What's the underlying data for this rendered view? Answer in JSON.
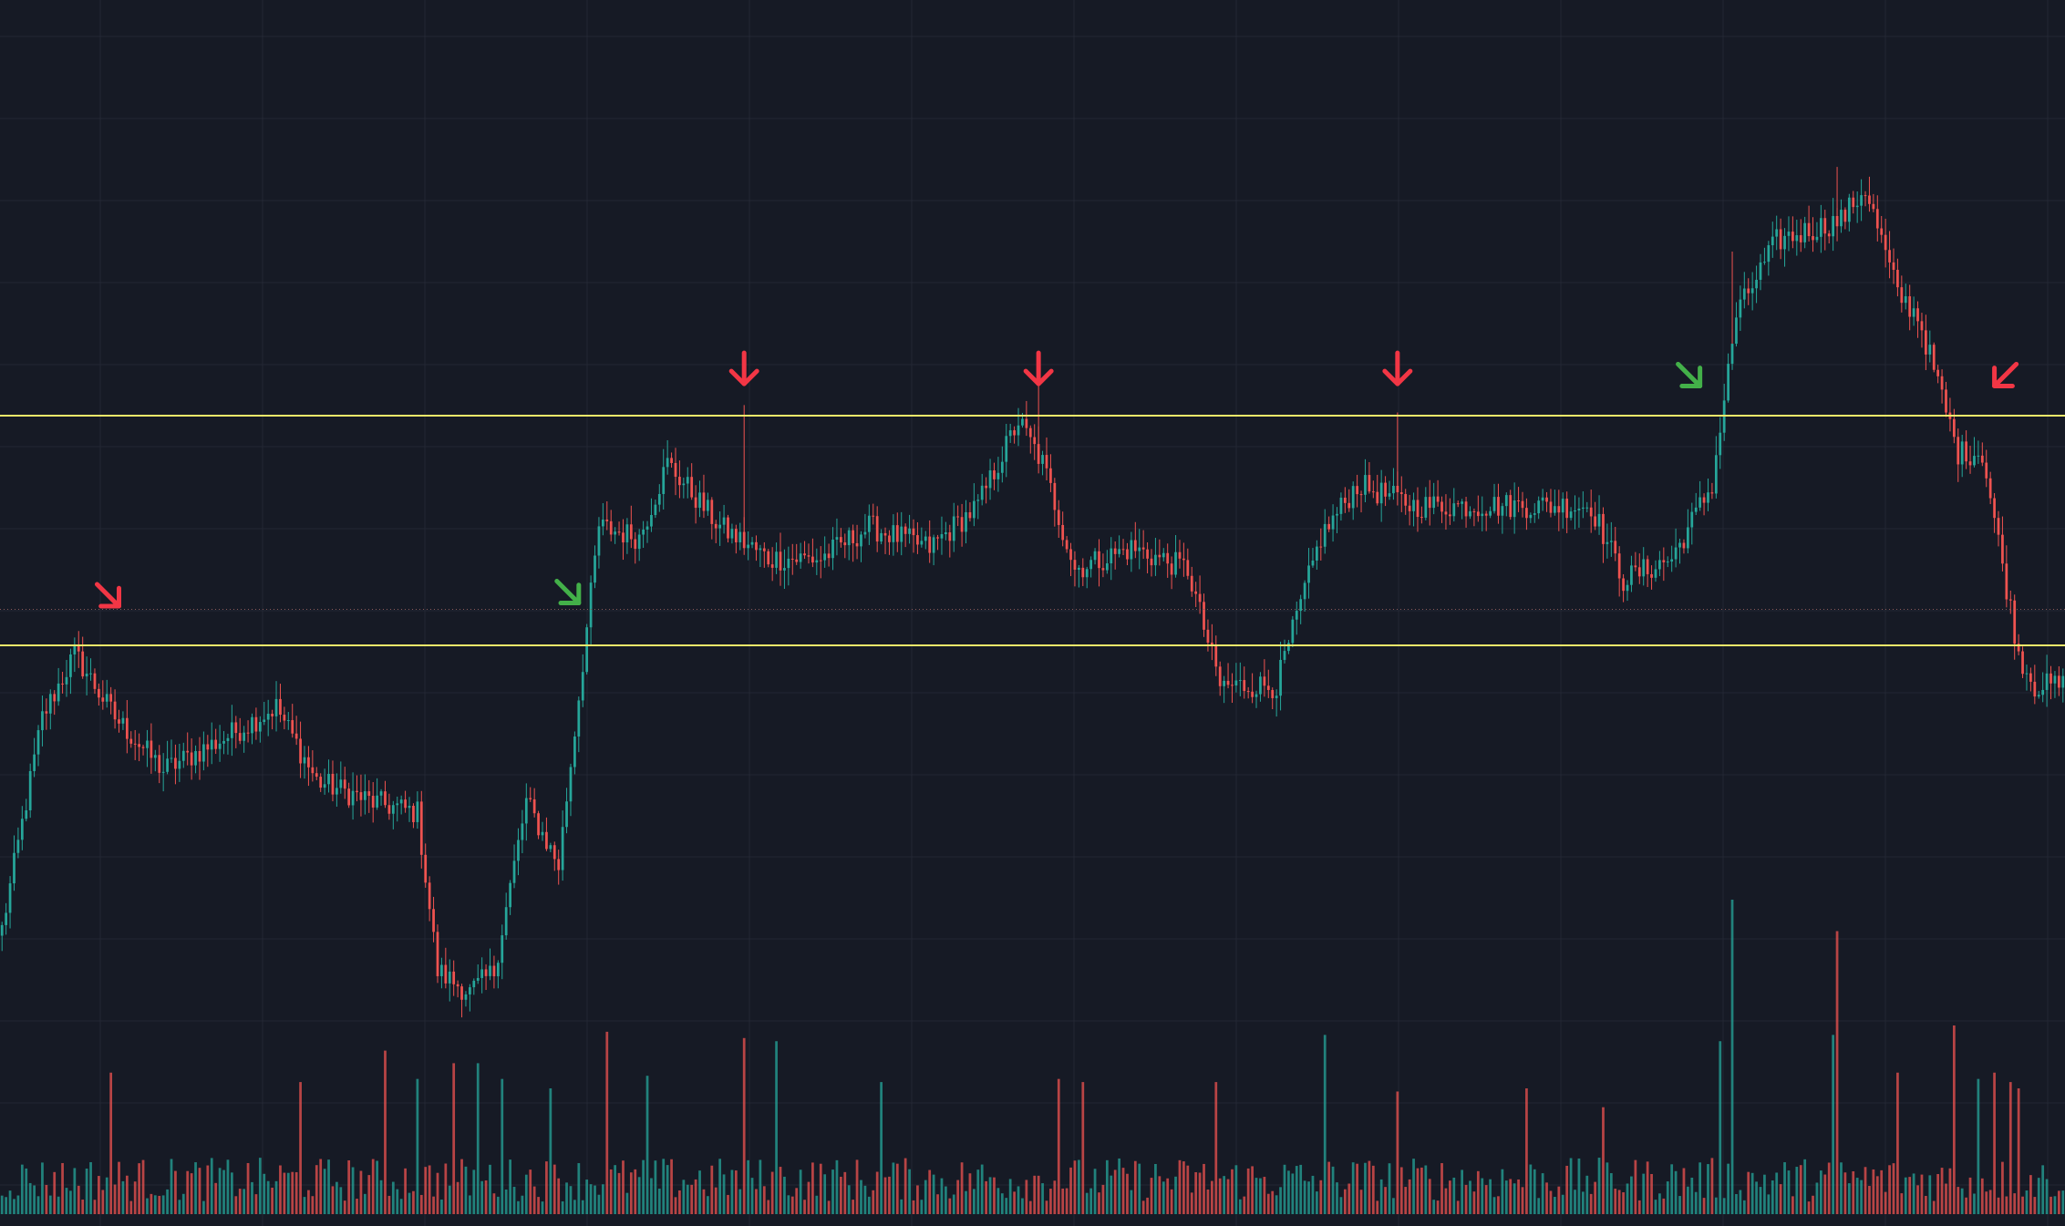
{
  "colors": {
    "background": "#161a25",
    "grid": "#232733",
    "up": "#26a69a",
    "down": "#ef5350",
    "level": "#f2e86a",
    "price_guide": "#8a5a5a",
    "arrow_red": "#f23645",
    "arrow_green": "#43b049"
  },
  "chart_data": {
    "type": "candlestick",
    "title": "",
    "xlabel": "",
    "ylabel": "",
    "grid": true,
    "volume_panel": true,
    "ylim": [
      0,
      100
    ],
    "price_scale": "relative",
    "horizontal_levels": [
      {
        "name": "resistance",
        "value": 66.5
      },
      {
        "name": "support",
        "value": 44.8
      }
    ],
    "price_guide_line": 48.2,
    "anchors": [
      [
        0,
        18
      ],
      [
        10,
        38
      ],
      [
        18,
        44
      ],
      [
        28,
        38
      ],
      [
        40,
        33
      ],
      [
        55,
        36
      ],
      [
        68,
        39
      ],
      [
        78,
        32
      ],
      [
        92,
        30
      ],
      [
        103,
        29
      ],
      [
        108,
        14
      ],
      [
        116,
        12
      ],
      [
        122,
        14
      ],
      [
        130,
        30
      ],
      [
        138,
        24
      ],
      [
        148,
        56
      ],
      [
        158,
        55
      ],
      [
        165,
        62
      ],
      [
        178,
        56
      ],
      [
        190,
        53
      ],
      [
        203,
        53
      ],
      [
        215,
        56
      ],
      [
        230,
        54
      ],
      [
        242,
        58
      ],
      [
        252,
        66
      ],
      [
        258,
        62
      ],
      [
        266,
        52
      ],
      [
        280,
        54
      ],
      [
        294,
        52
      ],
      [
        302,
        41
      ],
      [
        316,
        41
      ],
      [
        327,
        55
      ],
      [
        336,
        60
      ],
      [
        350,
        58
      ],
      [
        365,
        58
      ],
      [
        378,
        58
      ],
      [
        394,
        58
      ],
      [
        402,
        51
      ],
      [
        414,
        53
      ],
      [
        424,
        60
      ],
      [
        430,
        76
      ],
      [
        440,
        83
      ],
      [
        456,
        85
      ],
      [
        462,
        88
      ],
      [
        470,
        78
      ],
      [
        475,
        76
      ],
      [
        485,
        63
      ],
      [
        491,
        63
      ],
      [
        500,
        44
      ],
      [
        504,
        41
      ],
      [
        512,
        41
      ]
    ],
    "candle_count": 512,
    "annotations": [
      {
        "type": "arrow",
        "direction": "down-right",
        "color": "red",
        "x": 29,
        "y": 48.5
      },
      {
        "type": "arrow",
        "direction": "down-right",
        "color": "green",
        "x": 143,
        "y": 48.8
      },
      {
        "type": "arrow",
        "direction": "down",
        "color": "red",
        "x": 184,
        "y": 69.5
      },
      {
        "type": "arrow",
        "direction": "down",
        "color": "red",
        "x": 257,
        "y": 69.5
      },
      {
        "type": "arrow",
        "direction": "down",
        "color": "red",
        "x": 346,
        "y": 69.5
      },
      {
        "type": "arrow",
        "direction": "down-right",
        "color": "green",
        "x": 421,
        "y": 69.3
      },
      {
        "type": "arrow",
        "direction": "down-left",
        "color": "red",
        "x": 494,
        "y": 69.3
      }
    ],
    "volume_spikes": [
      [
        27,
        0.45
      ],
      [
        74,
        0.42
      ],
      [
        95,
        0.52
      ],
      [
        103,
        0.43
      ],
      [
        112,
        0.48
      ],
      [
        118,
        0.48
      ],
      [
        124,
        0.43
      ],
      [
        136,
        0.4
      ],
      [
        150,
        0.58
      ],
      [
        160,
        0.44
      ],
      [
        184,
        0.56
      ],
      [
        192,
        0.55
      ],
      [
        218,
        0.42
      ],
      [
        262,
        0.43
      ],
      [
        268,
        0.42
      ],
      [
        301,
        0.42
      ],
      [
        328,
        0.57
      ],
      [
        346,
        0.39
      ],
      [
        378,
        0.4
      ],
      [
        397,
        0.34
      ],
      [
        426,
        0.55
      ],
      [
        429,
        1.0
      ],
      [
        454,
        0.57
      ],
      [
        455,
        0.9
      ],
      [
        470,
        0.45
      ],
      [
        484,
        0.6
      ],
      [
        490,
        0.43
      ],
      [
        494,
        0.45
      ],
      [
        498,
        0.42
      ],
      [
        500,
        0.4
      ]
    ]
  }
}
